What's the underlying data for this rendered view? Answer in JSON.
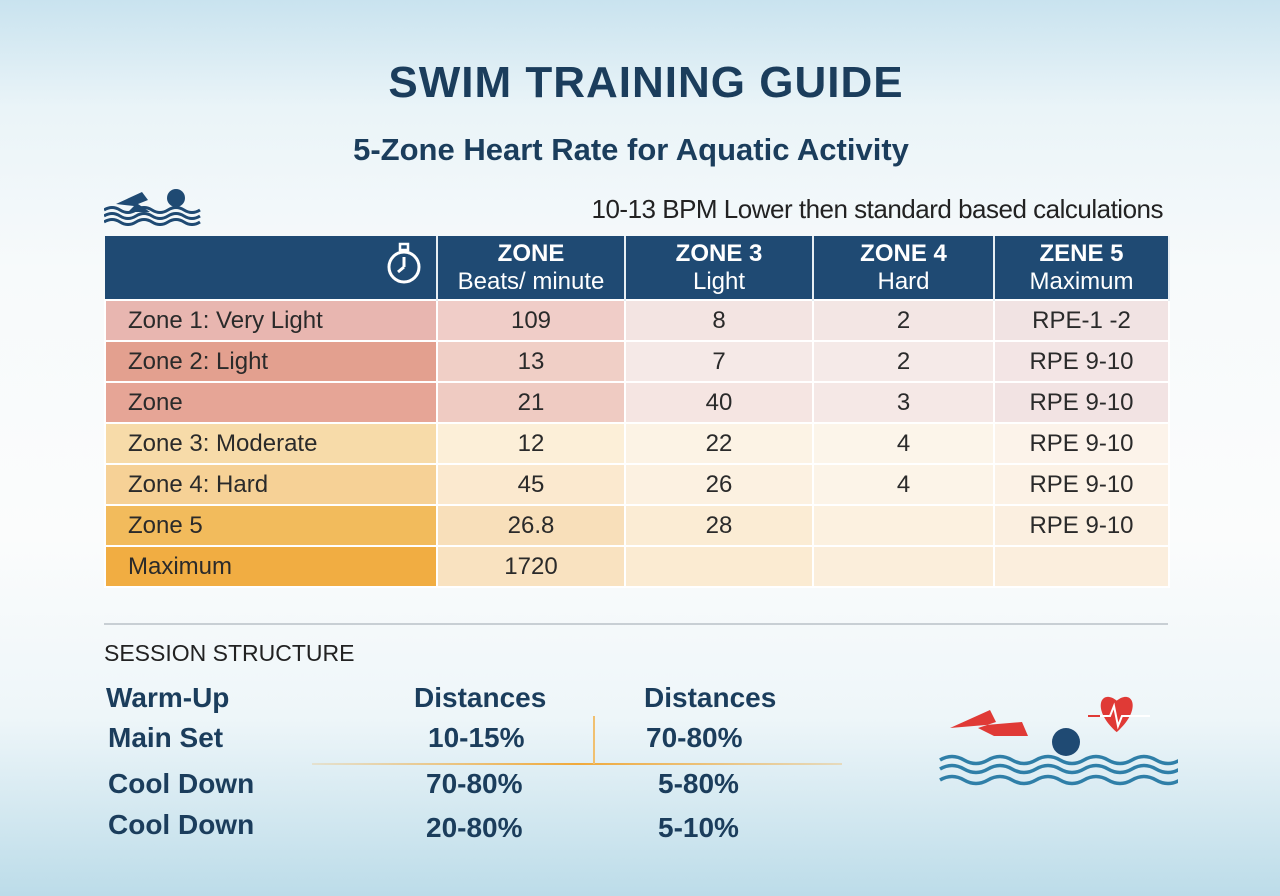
{
  "title": "SWIM TRAINING GUIDE",
  "subtitle": "5-Zone Heart Rate for Aquatic Activity",
  "note": "10-13 BPM Lower then standard based calculations",
  "table": {
    "headers": [
      {
        "top": "ZONE",
        "bottom": "Beats/ minute"
      },
      {
        "top": "ZONE 3",
        "bottom": "Light"
      },
      {
        "top": "ZONE 4",
        "bottom": "Hard"
      },
      {
        "top": "ZENE 5",
        "bottom": "Maximum"
      }
    ],
    "rows": [
      [
        "Zone 1: Very Light",
        "109",
        "8",
        "2",
        "RPE-1 -2"
      ],
      [
        "Zone 2: Light",
        "13",
        "7",
        "2",
        "RPE 9-10"
      ],
      [
        "Zone",
        "21",
        "40",
        "3",
        "RPE 9-10"
      ],
      [
        "Zone 3: Moderate",
        "12",
        "22",
        "4",
        "RPE 9-10"
      ],
      [
        "Zone 4: Hard",
        "45",
        "26",
        "4",
        "RPE 9-10"
      ],
      [
        "Zone 5",
        "26.8",
        "28",
        "",
        "RPE 9-10"
      ],
      [
        "Maximum",
        "1720",
        "",
        "",
        ""
      ]
    ]
  },
  "session": {
    "heading": "SESSION STRUCTURE",
    "labels": [
      "Warm-Up",
      "Main Set",
      "Cool Down",
      "Cool Down"
    ],
    "col1": [
      "Distances",
      "10-15%",
      "70-80%",
      "20-80%"
    ],
    "col2": [
      "Distances",
      "70-80%",
      "5-80%",
      "5-10%"
    ]
  },
  "colors": {
    "navy": "#1f4a73",
    "red": "#e03a36",
    "wave": "#2f7fa8"
  }
}
